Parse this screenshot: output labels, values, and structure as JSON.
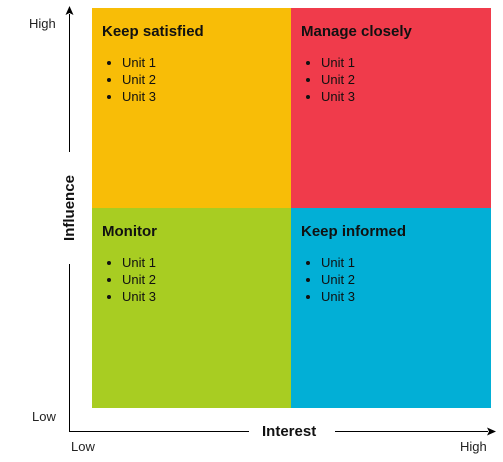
{
  "quadrants": {
    "top_left": {
      "title": "Keep satisfied",
      "items": [
        "Unit 1",
        "Unit 2",
        "Unit 3"
      ],
      "color": "#f8bd07"
    },
    "top_right": {
      "title": "Manage closely",
      "items": [
        "Unit 1",
        "Unit 2",
        "Unit 3"
      ],
      "color": "#f03b4b"
    },
    "bottom_left": {
      "title": "Monitor",
      "items": [
        "Unit 1",
        "Unit 2",
        "Unit 3"
      ],
      "color": "#a8cd22"
    },
    "bottom_right": {
      "title": "Keep informed",
      "items": [
        "Unit 1",
        "Unit 2",
        "Unit 3"
      ],
      "color": "#02afd6"
    }
  },
  "y_axis": {
    "title": "Influence",
    "high_label": "High",
    "low_label": "Low"
  },
  "x_axis": {
    "title": "Interest",
    "low_label": "Low",
    "high_label": "High"
  }
}
